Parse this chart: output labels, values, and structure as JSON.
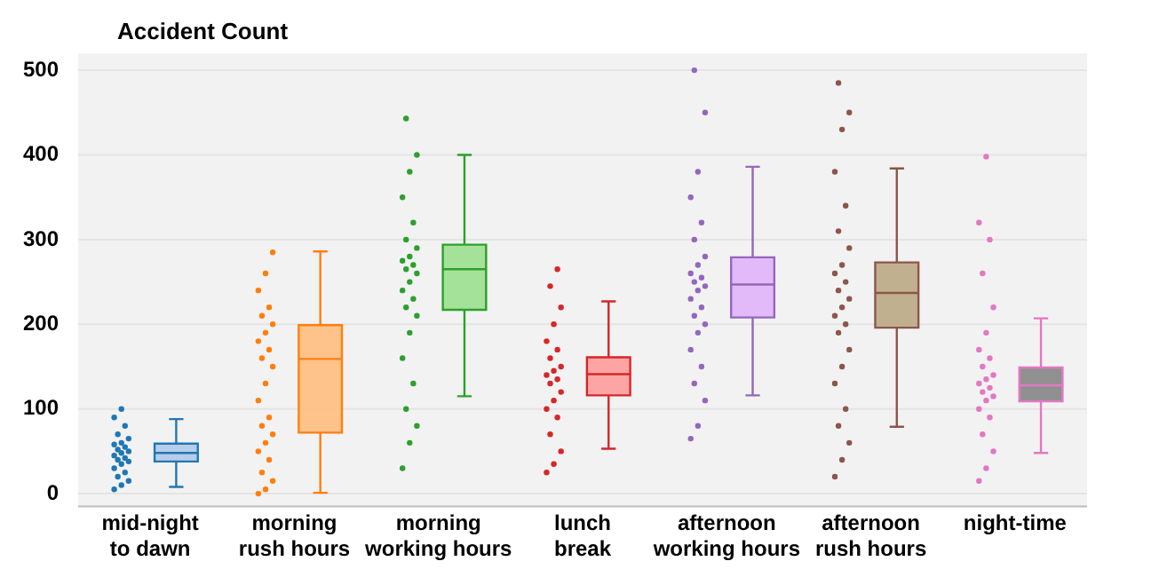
{
  "chart_data": {
    "type": "box",
    "ylabel": "Accident Count",
    "categories": [
      "mid-night\nto dawn",
      "morning\nrush hours",
      "morning\nworking hours",
      "lunch\nbreak",
      "afternoon\nworking hours",
      "afternoon\nrush hours",
      "night-time"
    ],
    "boxes": [
      {
        "low": 8,
        "q1": 38,
        "median": 48,
        "q3": 59,
        "high": 88
      },
      {
        "low": 1,
        "q1": 72,
        "median": 159,
        "q3": 199,
        "high": 286
      },
      {
        "low": 115,
        "q1": 217,
        "median": 265,
        "q3": 294,
        "high": 400
      },
      {
        "low": 53,
        "q1": 116,
        "median": 141,
        "q3": 161,
        "high": 227
      },
      {
        "low": 116,
        "q1": 208,
        "median": 247,
        "q3": 279,
        "high": 386
      },
      {
        "low": 79,
        "q1": 196,
        "median": 237,
        "q3": 273,
        "high": 384
      },
      {
        "low": 48,
        "q1": 109,
        "median": 128,
        "q3": 149,
        "high": 207
      }
    ],
    "colors": [
      "#aec7e8",
      "#ffbb78",
      "#98df8a",
      "#ff9896",
      "#e0b0fa",
      "#b8a47e",
      "#7f7f7f"
    ],
    "series": [
      {
        "type": "scatter",
        "color": "#1f77b4",
        "x": [
          "mid-night\nto dawn",
          "mid-night\nto dawn",
          "mid-night\nto dawn",
          "mid-night\nto dawn",
          "mid-night\nto dawn",
          "mid-night\nto dawn",
          "mid-night\nto dawn",
          "mid-night\nto dawn",
          "mid-night\nto dawn",
          "mid-night\nto dawn",
          "mid-night\nto dawn",
          "mid-night\nto dawn",
          "mid-night\nto dawn",
          "mid-night\nto dawn",
          "mid-night\nto dawn",
          "mid-night\nto dawn",
          "mid-night\nto dawn",
          "mid-night\nto dawn",
          "mid-night\nto dawn",
          "mid-night\nto dawn",
          "mid-night\nto dawn",
          "mid-night\nto dawn"
        ],
        "values": [
          5,
          10,
          15,
          20,
          25,
          30,
          35,
          38,
          40,
          42,
          45,
          48,
          50,
          52,
          55,
          58,
          60,
          65,
          70,
          80,
          90,
          100
        ]
      },
      {
        "type": "scatter",
        "color": "#ff7f0e",
        "x": [
          "morning\nrush hours",
          "morning\nrush hours",
          "morning\nrush hours",
          "morning\nrush hours",
          "morning\nrush hours",
          "morning\nrush hours",
          "morning\nrush hours",
          "morning\nrush hours",
          "morning\nrush hours",
          "morning\nrush hours",
          "morning\nrush hours",
          "morning\nrush hours",
          "morning\nrush hours",
          "morning\nrush hours",
          "morning\nrush hours",
          "morning\nrush hours",
          "morning\nrush hours",
          "morning\nrush hours",
          "morning\nrush hours",
          "morning\nrush hours",
          "morning\nrush hours",
          "morning\nrush hours",
          "morning\nrush hours"
        ],
        "values": [
          0,
          5,
          15,
          25,
          40,
          50,
          60,
          70,
          80,
          90,
          110,
          130,
          150,
          160,
          170,
          180,
          190,
          200,
          210,
          220,
          240,
          260,
          285
        ]
      },
      {
        "type": "scatter",
        "color": "#2ca02c",
        "x": [
          "morning\nworking hours",
          "morning\nworking hours",
          "morning\nworking hours",
          "morning\nworking hours",
          "morning\nworking hours",
          "morning\nworking hours",
          "morning\nworking hours",
          "morning\nworking hours",
          "morning\nworking hours",
          "morning\nworking hours",
          "morning\nworking hours",
          "morning\nworking hours",
          "morning\nworking hours",
          "morning\nworking hours",
          "morning\nworking hours",
          "morning\nworking hours",
          "morning\nworking hours",
          "morning\nworking hours",
          "morning\nworking hours",
          "morning\nworking hours",
          "morning\nworking hours",
          "morning\nworking hours",
          "morning\nworking hours",
          "morning\nworking hours"
        ],
        "values": [
          30,
          60,
          80,
          100,
          130,
          160,
          190,
          210,
          220,
          230,
          240,
          250,
          260,
          265,
          270,
          275,
          280,
          290,
          300,
          320,
          350,
          380,
          400,
          443
        ]
      },
      {
        "type": "scatter",
        "color": "#d62728",
        "x": [
          "lunch\nbreak",
          "lunch\nbreak",
          "lunch\nbreak",
          "lunch\nbreak",
          "lunch\nbreak",
          "lunch\nbreak",
          "lunch\nbreak",
          "lunch\nbreak",
          "lunch\nbreak",
          "lunch\nbreak",
          "lunch\nbreak",
          "lunch\nbreak",
          "lunch\nbreak",
          "lunch\nbreak",
          "lunch\nbreak",
          "lunch\nbreak",
          "lunch\nbreak",
          "lunch\nbreak",
          "lunch\nbreak",
          "lunch\nbreak"
        ],
        "values": [
          25,
          35,
          50,
          70,
          90,
          100,
          110,
          120,
          130,
          135,
          140,
          145,
          150,
          160,
          170,
          180,
          200,
          220,
          245,
          265
        ]
      },
      {
        "type": "scatter",
        "color": "#9467bd",
        "x": [
          "afternoon\nworking hours",
          "afternoon\nworking hours",
          "afternoon\nworking hours",
          "afternoon\nworking hours",
          "afternoon\nworking hours",
          "afternoon\nworking hours",
          "afternoon\nworking hours",
          "afternoon\nworking hours",
          "afternoon\nworking hours",
          "afternoon\nworking hours",
          "afternoon\nworking hours",
          "afternoon\nworking hours",
          "afternoon\nworking hours",
          "afternoon\nworking hours",
          "afternoon\nworking hours",
          "afternoon\nworking hours",
          "afternoon\nworking hours",
          "afternoon\nworking hours",
          "afternoon\nworking hours",
          "afternoon\nworking hours",
          "afternoon\nworking hours",
          "afternoon\nworking hours",
          "afternoon\nworking hours",
          "afternoon\nworking hours"
        ],
        "values": [
          65,
          80,
          110,
          130,
          150,
          170,
          190,
          200,
          210,
          220,
          230,
          240,
          245,
          250,
          255,
          260,
          270,
          280,
          300,
          320,
          350,
          380,
          450,
          500
        ]
      },
      {
        "type": "scatter",
        "color": "#8c564b",
        "x": [
          "afternoon\nrush hours",
          "afternoon\nrush hours",
          "afternoon\nrush hours",
          "afternoon\nrush hours",
          "afternoon\nrush hours",
          "afternoon\nrush hours",
          "afternoon\nrush hours",
          "afternoon\nrush hours",
          "afternoon\nrush hours",
          "afternoon\nrush hours",
          "afternoon\nrush hours",
          "afternoon\nrush hours",
          "afternoon\nrush hours",
          "afternoon\nrush hours",
          "afternoon\nrush hours",
          "afternoon\nrush hours",
          "afternoon\nrush hours",
          "afternoon\nrush hours",
          "afternoon\nrush hours",
          "afternoon\nrush hours",
          "afternoon\nrush hours",
          "afternoon\nrush hours",
          "afternoon\nrush hours",
          "afternoon\nrush hours"
        ],
        "values": [
          20,
          40,
          60,
          80,
          100,
          130,
          150,
          170,
          190,
          200,
          210,
          220,
          230,
          240,
          250,
          260,
          270,
          290,
          310,
          340,
          380,
          430,
          450,
          485
        ]
      },
      {
        "type": "scatter",
        "color": "#e377c2",
        "x": [
          "night-time",
          "night-time",
          "night-time",
          "night-time",
          "night-time",
          "night-time",
          "night-time",
          "night-time",
          "night-time",
          "night-time",
          "night-time",
          "night-time",
          "night-time",
          "night-time",
          "night-time",
          "night-time",
          "night-time",
          "night-time",
          "night-time",
          "night-time",
          "night-time",
          "night-time"
        ],
        "values": [
          15,
          30,
          50,
          70,
          90,
          100,
          110,
          115,
          120,
          125,
          130,
          135,
          140,
          150,
          160,
          170,
          190,
          220,
          260,
          300,
          320,
          398
        ]
      }
    ],
    "ylim": [
      -15,
      520
    ],
    "yticks": [
      0,
      100,
      200,
      300,
      400,
      500
    ],
    "grid": "y",
    "legend": false,
    "marker": "circle"
  }
}
